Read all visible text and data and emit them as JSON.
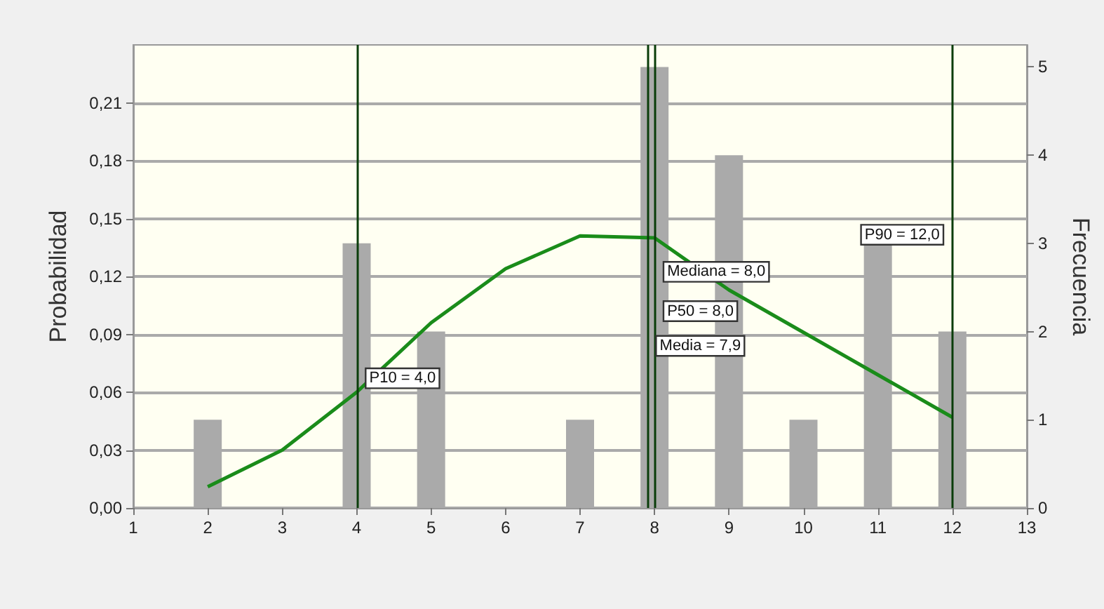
{
  "chart_data": {
    "type": "bar",
    "xlabel": null,
    "ylabel": "Probabilidad",
    "y2label": "Frecuencia",
    "series": [
      {
        "axis": "y2",
        "color": "#aaaaaa",
        "x": [
          2,
          4,
          5,
          7,
          8,
          9,
          10,
          11,
          12
        ],
        "values": [
          1,
          3,
          2,
          1,
          5,
          4,
          1,
          3,
          2
        ]
      },
      {
        "type": "line",
        "axis": "y",
        "color": "#1a8c1a",
        "x": [
          2,
          3,
          4,
          5,
          6,
          7,
          8,
          9,
          10,
          11,
          12
        ],
        "values": [
          0.011,
          0.03,
          0.06,
          0.096,
          0.124,
          0.141,
          0.14,
          0.113,
          0.091,
          0.069,
          0.047
        ]
      }
    ],
    "xlim": [
      1,
      13
    ],
    "xticks": [
      1,
      2,
      3,
      4,
      5,
      6,
      7,
      8,
      9,
      10,
      11,
      12,
      13
    ],
    "ylim": [
      0,
      0.24
    ],
    "yticks": [
      {
        "value": 0,
        "label": "0,00"
      },
      {
        "value": 0.03,
        "label": "0,03"
      },
      {
        "value": 0.06,
        "label": "0,06"
      },
      {
        "value": 0.09,
        "label": "0,09"
      },
      {
        "value": 0.12,
        "label": "0,12"
      },
      {
        "value": 0.15,
        "label": "0,15"
      },
      {
        "value": 0.18,
        "label": "0,18"
      },
      {
        "value": 0.21,
        "label": "0,21"
      }
    ],
    "y2lim": [
      0,
      5.25
    ],
    "y2ticks": [
      0,
      1,
      2,
      3,
      4,
      5
    ],
    "ref_lines": [
      {
        "axis": "x",
        "value": 4,
        "label": "P10 = 4,0",
        "color": "#0a3d0a"
      },
      {
        "axis": "x",
        "value": 8,
        "label": "Mediana = 8,0",
        "color": "#0a3d0a"
      },
      {
        "axis": "x",
        "value": 7.9,
        "label": "Media = 7,9",
        "color": "#0a3d0a"
      },
      {
        "axis": "x",
        "value": 12,
        "label": "P90 = 12,0",
        "color": "#0a3d0a"
      }
    ],
    "annotations": [
      {
        "text": "P50 = 8,0",
        "x": 8,
        "y": 0.102
      }
    ],
    "grid": "y",
    "legend": false,
    "marker": "none",
    "line_style": "solid"
  }
}
